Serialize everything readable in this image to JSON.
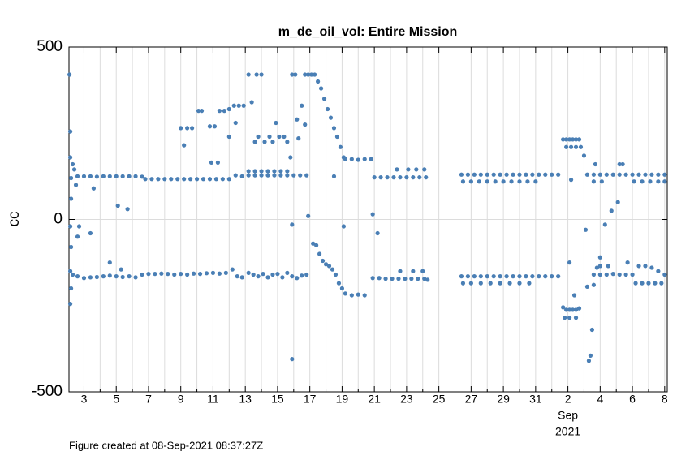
{
  "chart_data": {
    "type": "scatter",
    "title": "m_de_oil_vol: Entire Mission",
    "ylabel": "cc",
    "footer": "Figure created at 08-Sep-2021 08:37:27Z",
    "month_marker": {
      "value": 33,
      "label": "Sep"
    },
    "year": "2021",
    "color": "#4a7fb5",
    "grid": true,
    "xlim": [
      2.07,
      39.16
    ],
    "xticks": [
      3,
      5,
      7,
      9,
      11,
      13,
      15,
      17,
      19,
      21,
      23,
      25,
      27,
      29,
      31,
      {
        "value": 33,
        "label": "2"
      },
      {
        "value": 35,
        "label": "4"
      },
      {
        "value": 37,
        "label": "6"
      },
      {
        "value": 39,
        "label": "8"
      }
    ],
    "xminorticks": [
      4,
      6,
      8,
      10,
      12,
      14,
      16,
      18,
      20,
      22,
      24,
      26,
      28,
      30,
      32,
      34,
      36,
      38
    ],
    "ylim": [
      -500,
      500
    ],
    "yticks": [
      -500,
      0,
      500
    ],
    "x": [
      2.1,
      2.15,
      2.15,
      2.2,
      2.2,
      2.15,
      2.2,
      2.15,
      2.2,
      2.15,
      2.3,
      2.4,
      2.3,
      2.5,
      2.6,
      2.7,
      3.4,
      3.6,
      4.6,
      5.3,
      5.1,
      5.7,
      2.6,
      3.0,
      3.4,
      3.8,
      4.2,
      4.6,
      5.0,
      5.4,
      5.8,
      6.2,
      6.6,
      2.6,
      3.0,
      3.4,
      3.8,
      4.2,
      4.6,
      5.0,
      5.4,
      5.8,
      6.2,
      6.6,
      7.0,
      7.4,
      7.8,
      8.2,
      8.6,
      9.0,
      9.4,
      9.8,
      10.2,
      10.6,
      11.0,
      11.4,
      11.8,
      12.2,
      6.8,
      7.2,
      7.6,
      8.0,
      8.4,
      8.8,
      9.2,
      9.6,
      10.0,
      10.4,
      10.8,
      11.2,
      11.6,
      12.0,
      9.0,
      9.2,
      9.4,
      9.7,
      10.1,
      10.3,
      10.8,
      11.1,
      10.9,
      11.3,
      11.4,
      11.7,
      12.0,
      12.3,
      12.4,
      12.0,
      12.4,
      12.8,
      13.2,
      13.6,
      14.0,
      14.4,
      14.8,
      15.2,
      15.6,
      16.0,
      16.4,
      16.8,
      13.2,
      13.6,
      14.0,
      14.4,
      14.8,
      15.2,
      15.6,
      12.6,
      12.9,
      13.2,
      13.4,
      13.7,
      14.0,
      13.6,
      13.8,
      14.2,
      14.5,
      14.7,
      14.9,
      15.1,
      15.4,
      15.6,
      15.8,
      15.9,
      16.1,
      16.2,
      16.3,
      16.5,
      16.7,
      16.9,
      17.1,
      17.3,
      16.7,
      15.9,
      16.9,
      15.9,
      12.5,
      12.8,
      13.2,
      13.5,
      13.8,
      14.1,
      14.4,
      14.7,
      15.0,
      15.3,
      15.6,
      15.9,
      16.2,
      16.5,
      16.8,
      17.5,
      17.7,
      17.9,
      18.1,
      18.3,
      18.5,
      18.7,
      18.9,
      19.1,
      18.5,
      19.1,
      17.2,
      17.4,
      17.6,
      17.8,
      18.0,
      18.2,
      18.4,
      18.6,
      18.8,
      19.0,
      19.2,
      19.6,
      20.0,
      20.4,
      20.8,
      19.2,
      19.6,
      20.0,
      20.4,
      20.9,
      21.2,
      21.0,
      21.4,
      21.8,
      22.2,
      22.6,
      23.0,
      23.4,
      23.8,
      24.2,
      22.4,
      23.1,
      23.6,
      24.1,
      20.9,
      21.3,
      21.7,
      22.1,
      22.5,
      22.9,
      23.3,
      23.7,
      24.1,
      22.6,
      23.4,
      24.0,
      24.3,
      26.4,
      26.8,
      27.2,
      27.6,
      28.0,
      28.4,
      28.8,
      29.2,
      29.6,
      30.0,
      30.4,
      30.8,
      31.2,
      31.6,
      32.0,
      32.4,
      26.5,
      27.0,
      27.5,
      28.0,
      28.5,
      29.0,
      29.5,
      30.0,
      30.5,
      31.0,
      26.4,
      26.8,
      27.2,
      27.6,
      28.0,
      28.4,
      28.8,
      29.2,
      29.6,
      30.0,
      30.4,
      30.8,
      31.2,
      31.6,
      32.0,
      32.4,
      26.5,
      27.0,
      27.6,
      28.2,
      28.8,
      29.4,
      30.0,
      30.6,
      32.7,
      32.9,
      33.1,
      33.3,
      33.5,
      33.7,
      32.9,
      33.2,
      33.5,
      33.8,
      33.2,
      32.7,
      32.9,
      33.1,
      33.3,
      33.5,
      33.7,
      32.8,
      33.1,
      33.5,
      33.1,
      33.4,
      34.1,
      34.5,
      34.4,
      34.3,
      34.6,
      34.8,
      35.0,
      35.3,
      35.7,
      36.1,
      34.0,
      34.2,
      34.6,
      35.0,
      35.4,
      35.8,
      36.2,
      36.6,
      37.0,
      37.4,
      37.8,
      38.2,
      38.6,
      39.0,
      34.6,
      35.1,
      37.1,
      37.6,
      38.1,
      38.6,
      39.0,
      34.7,
      36.2,
      36.4,
      34.2,
      34.6,
      35.0,
      35.4,
      35.8,
      36.2,
      36.6,
      37.0,
      37.4,
      37.8,
      38.2,
      38.6,
      39.0,
      37.2,
      37.6,
      38.0,
      38.4,
      38.8,
      35.0,
      35.5,
      36.7
    ],
    "values": [
      420,
      255,
      180,
      120,
      60,
      -20,
      -80,
      -150,
      -200,
      -245,
      160,
      145,
      -160,
      100,
      -50,
      -20,
      -40,
      90,
      -125,
      -145,
      40,
      30,
      125,
      125,
      125,
      124,
      125,
      125,
      125,
      125,
      125,
      125,
      124,
      -165,
      -170,
      -168,
      -167,
      -165,
      -163,
      -165,
      -167,
      -165,
      -168,
      -160,
      -158,
      -158,
      -157,
      -158,
      -160,
      -158,
      -160,
      -157,
      -158,
      -156,
      -155,
      -157,
      -155,
      -145,
      117,
      117,
      117,
      117,
      117,
      117,
      117,
      117,
      117,
      117,
      117,
      117,
      117,
      117,
      265,
      215,
      265,
      265,
      315,
      315,
      270,
      270,
      165,
      165,
      315,
      315,
      320,
      330,
      280,
      240,
      128,
      125,
      128,
      128,
      128,
      128,
      128,
      128,
      128,
      128,
      128,
      128,
      140,
      140,
      140,
      140,
      140,
      140,
      140,
      330,
      330,
      420,
      340,
      420,
      420,
      225,
      240,
      225,
      240,
      225,
      280,
      240,
      240,
      225,
      180,
      420,
      420,
      290,
      235,
      330,
      420,
      420,
      420,
      420,
      275,
      -15,
      10,
      -405,
      -165,
      -168,
      -155,
      -160,
      -165,
      -158,
      -168,
      -160,
      -158,
      -168,
      -155,
      -165,
      -170,
      -163,
      -160,
      400,
      380,
      350,
      320,
      295,
      265,
      240,
      210,
      180,
      125,
      -20,
      -70,
      -75,
      -100,
      -120,
      -130,
      -135,
      -145,
      -160,
      -185,
      -200,
      175,
      175,
      173,
      175,
      175,
      -215,
      -220,
      -218,
      -220,
      15,
      -40,
      122,
      122,
      122,
      122,
      122,
      122,
      122,
      122,
      122,
      145,
      145,
      145,
      145,
      -170,
      -170,
      -172,
      -172,
      -172,
      -172,
      -172,
      -172,
      -172,
      -150,
      -150,
      -150,
      -175,
      130,
      130,
      130,
      130,
      130,
      130,
      130,
      130,
      130,
      130,
      130,
      130,
      130,
      130,
      130,
      130,
      110,
      110,
      110,
      110,
      110,
      110,
      110,
      110,
      110,
      110,
      -165,
      -165,
      -165,
      -165,
      -165,
      -165,
      -165,
      -165,
      -165,
      -165,
      -165,
      -165,
      -165,
      -165,
      -165,
      -165,
      -185,
      -185,
      -185,
      -185,
      -185,
      -185,
      -185,
      -185,
      232,
      232,
      232,
      232,
      232,
      232,
      210,
      210,
      210,
      210,
      115,
      -255,
      -262,
      -262,
      -262,
      -262,
      -258,
      -285,
      -285,
      -285,
      -125,
      -220,
      -30,
      -320,
      -395,
      -410,
      -190,
      -140,
      -110,
      -15,
      25,
      50,
      185,
      130,
      130,
      130,
      130,
      130,
      130,
      130,
      130,
      130,
      130,
      130,
      130,
      130,
      110,
      110,
      110,
      110,
      110,
      110,
      110,
      160,
      160,
      160,
      -195,
      -160,
      -160,
      -160,
      -158,
      -160,
      -160,
      -160,
      -135,
      -135,
      -140,
      -150,
      -160,
      -185,
      -185,
      -185,
      -185,
      -185,
      -135,
      -135,
      -125
    ]
  }
}
